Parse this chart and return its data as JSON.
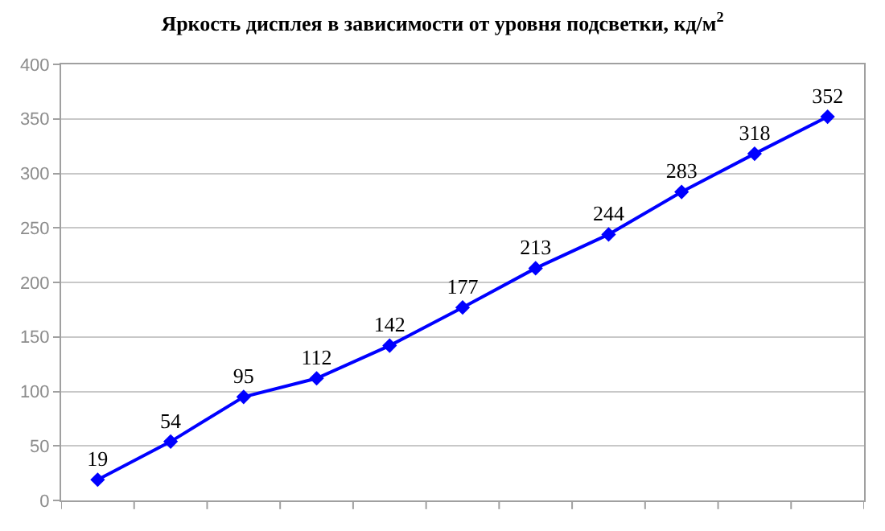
{
  "chart_data": {
    "type": "line",
    "title": "Яркость дисплея в зависимости от уровня подсветки, кд/м$^{2}$",
    "categories": [
      null,
      null,
      null,
      null,
      null,
      null,
      null,
      null,
      null,
      null,
      null
    ],
    "series": [
      {
        "color": "#0000ff",
        "values": [
          19,
          54,
          95,
          112,
          142,
          177,
          213,
          244,
          283,
          318,
          352
        ]
      }
    ],
    "ylim": [
      0,
      400
    ],
    "yticks": [
      0,
      50,
      100,
      150,
      200,
      250,
      300,
      350,
      400
    ],
    "grid": "y",
    "marker": "diamond",
    "line_style": "solid",
    "data_labels": true,
    "legend": false
  }
}
